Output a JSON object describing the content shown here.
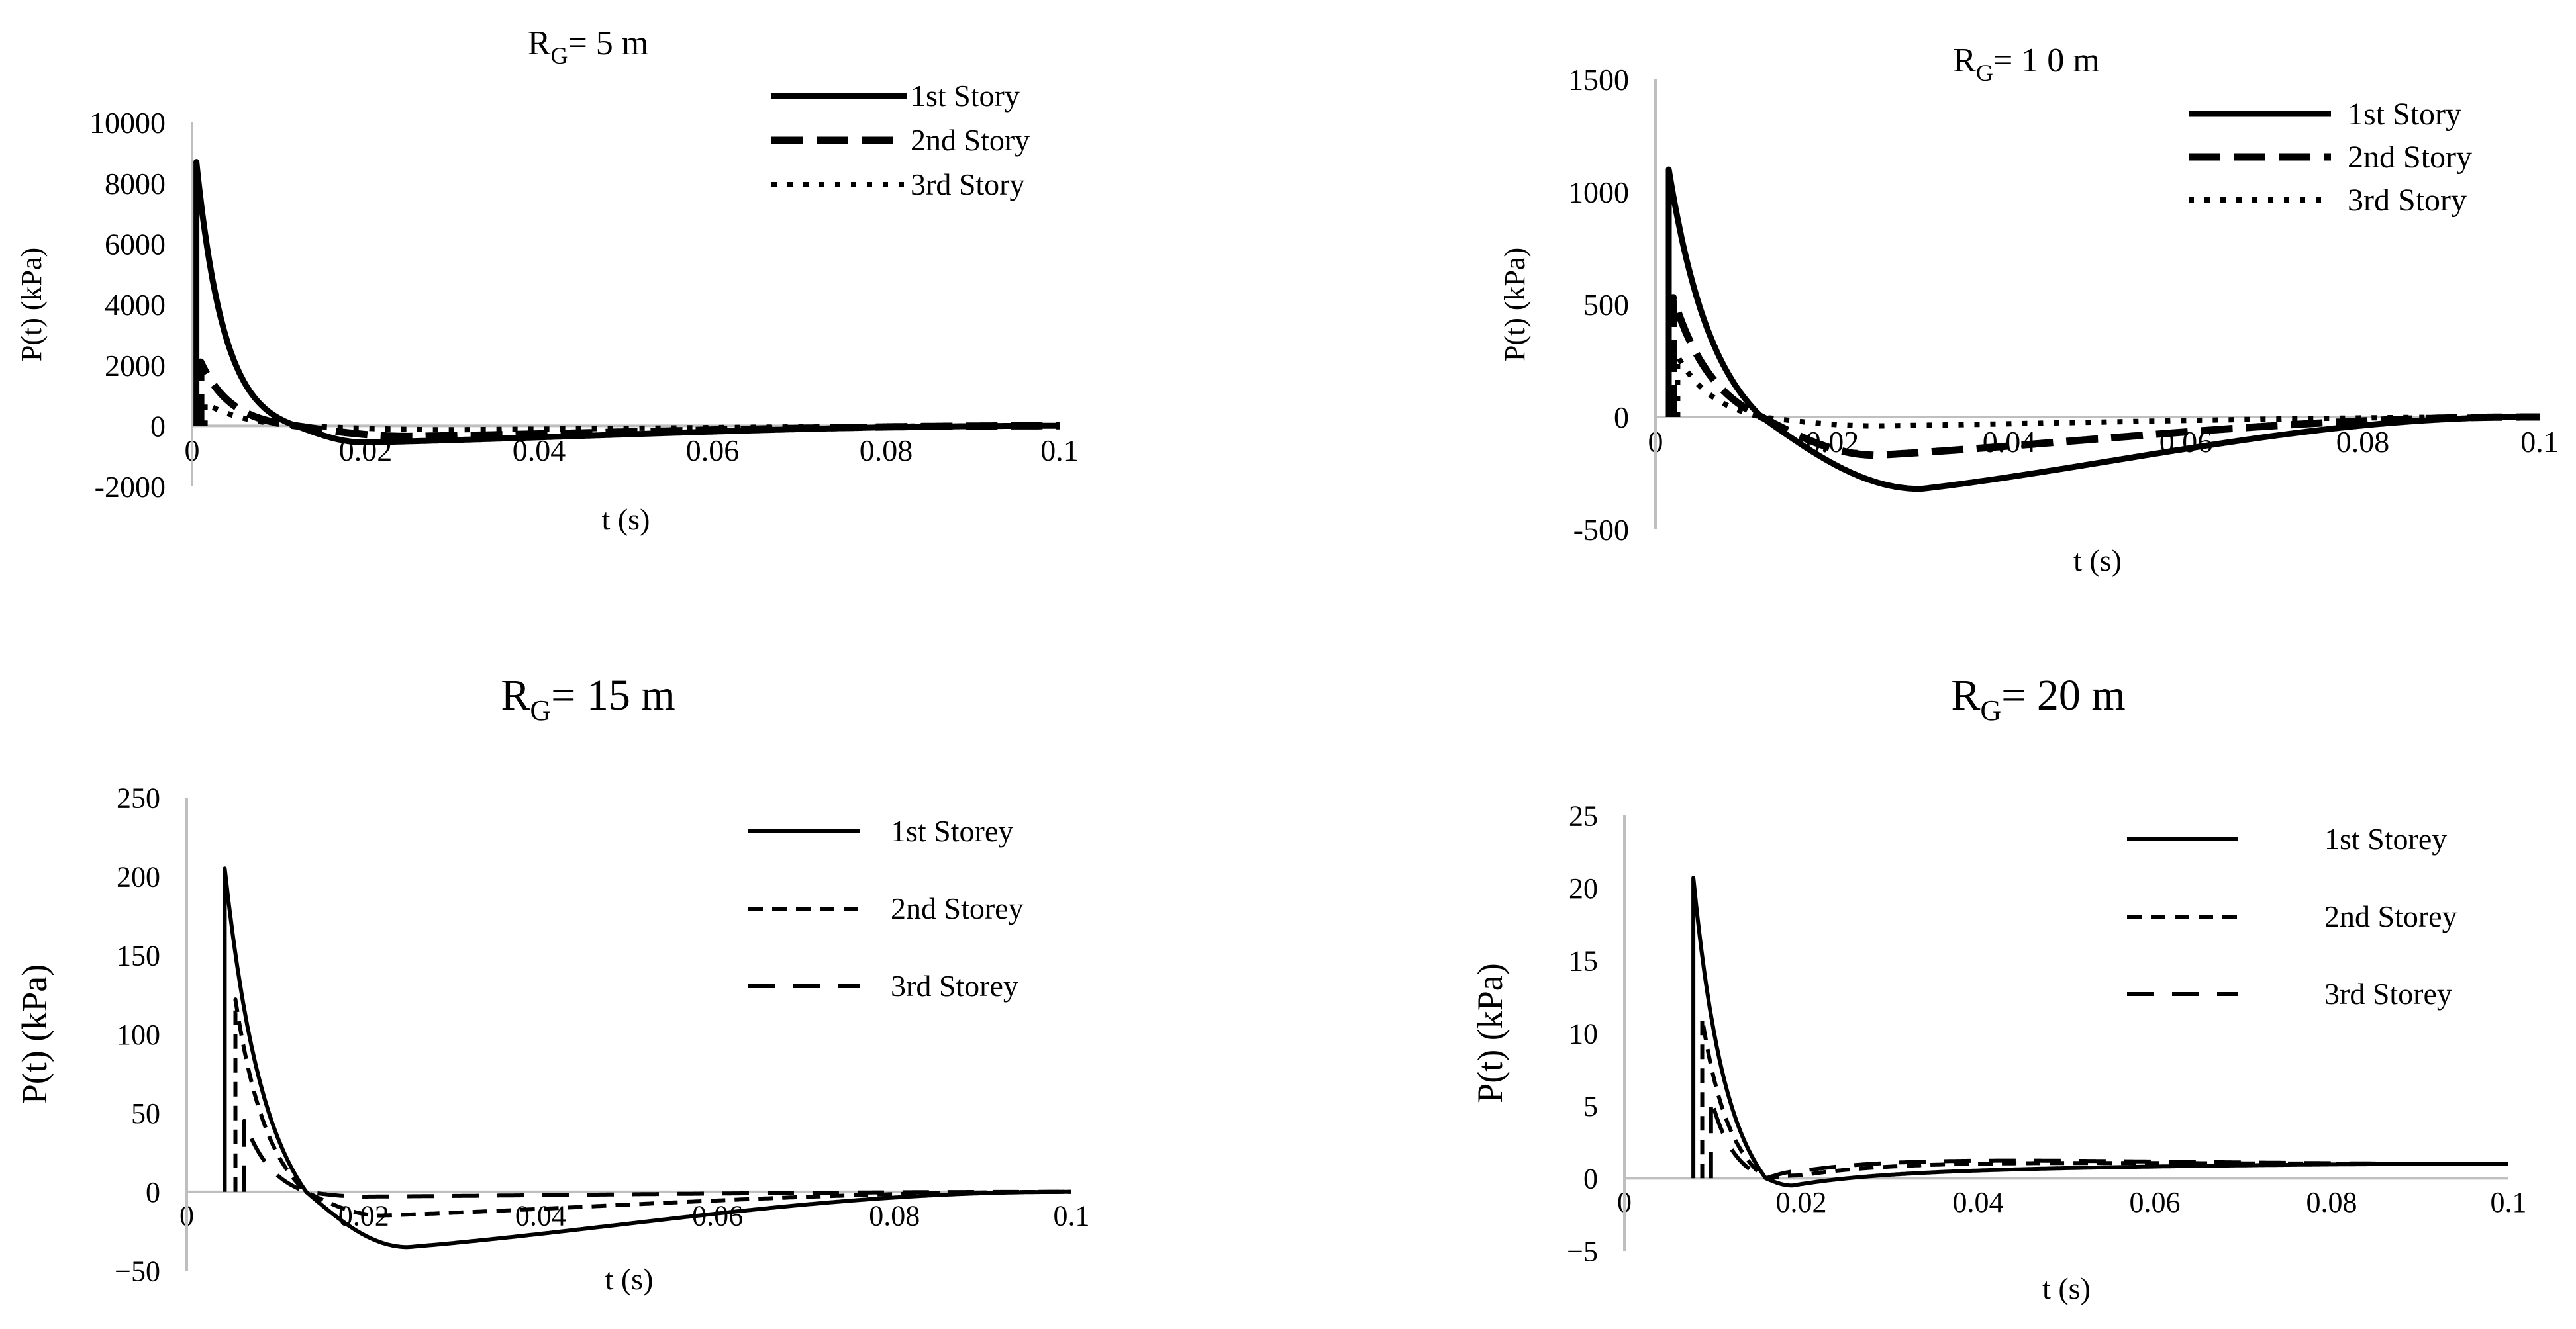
{
  "figure": {
    "background": "#ffffff",
    "line_color": "#000000",
    "zero_line_color": "#bfbfbf"
  },
  "chart_data": [
    {
      "type": "line",
      "title_main": "R",
      "title_sub": "G",
      "title_rest": "=  5  m",
      "xlabel": "t (s)",
      "ylabel": "P(t) (kPa)",
      "xlim": [
        0,
        0.1
      ],
      "ylim": [
        -2000,
        10000
      ],
      "xticks": [
        0,
        0.02,
        0.04,
        0.06,
        0.08,
        0.1
      ],
      "xtick_labels": [
        "0",
        "0.02",
        "0.04",
        "0.06",
        "0.08",
        "0.1"
      ],
      "yticks": [
        -2000,
        0,
        2000,
        4000,
        6000,
        8000,
        10000
      ],
      "ytick_labels": [
        "-2000",
        "0",
        "2000",
        "4000",
        "6000",
        "8000",
        "10000"
      ],
      "legend": "top-right",
      "series": [
        {
          "name": "1st Story",
          "style": "solid",
          "arrival": 0.0005,
          "peak": 8700,
          "decay": 0.0032,
          "zero": 0.012,
          "neg_min": -550,
          "neg_t": 0.02,
          "end": 0.1
        },
        {
          "name": "2nd Story",
          "style": "dash",
          "arrival": 0.001,
          "peak": 2100,
          "decay": 0.0035,
          "zero": 0.012,
          "neg_min": -350,
          "neg_t": 0.025,
          "end": 0.1
        },
        {
          "name": "3rd Story",
          "style": "dot",
          "arrival": 0.0015,
          "peak": 750,
          "decay": 0.0045,
          "zero": 0.012,
          "neg_min": -130,
          "neg_t": 0.03,
          "end": 0.1
        }
      ]
    },
    {
      "type": "line",
      "title_main": "R",
      "title_sub": "G",
      "title_rest": "=  1 0  m",
      "xlabel": "t (s)",
      "ylabel": "P(t) (kPa)",
      "xlim": [
        0,
        0.1
      ],
      "ylim": [
        -500,
        1500
      ],
      "xticks": [
        0,
        0.02,
        0.04,
        0.06,
        0.08,
        0.1
      ],
      "xtick_labels": [
        "0",
        "0.02",
        "0.04",
        "0.06",
        "0.08",
        "0.1"
      ],
      "yticks": [
        -500,
        0,
        500,
        1000,
        1500
      ],
      "ytick_labels": [
        "-500",
        "0",
        "500",
        "1000",
        "1500"
      ],
      "legend": "top-right",
      "series": [
        {
          "name": "1st Story",
          "style": "solid",
          "arrival": 0.0015,
          "peak": 1100,
          "decay": 0.0048,
          "zero": 0.012,
          "neg_min": -320,
          "neg_t": 0.03,
          "end": 0.1
        },
        {
          "name": "2nd Story",
          "style": "dash",
          "arrival": 0.002,
          "peak": 530,
          "decay": 0.0045,
          "zero": 0.012,
          "neg_min": -170,
          "neg_t": 0.025,
          "end": 0.1
        },
        {
          "name": "3rd Story",
          "style": "dot",
          "arrival": 0.0025,
          "peak": 270,
          "decay": 0.004,
          "zero": 0.012,
          "neg_min": -40,
          "neg_t": 0.025,
          "end": 0.1
        }
      ]
    },
    {
      "type": "line",
      "title_main": "R",
      "title_sub": "G",
      "title_rest": "= 15 m",
      "xlabel": "t (s)",
      "ylabel": "P(t) (kPa)",
      "xlim": [
        0,
        0.1
      ],
      "ylim": [
        -50,
        250
      ],
      "xticks": [
        0,
        0.02,
        0.04,
        0.06,
        0.08,
        0.1
      ],
      "xtick_labels": [
        "0",
        "0.02",
        "0.04",
        "0.06",
        "0.08",
        "0.1"
      ],
      "yticks": [
        -50,
        0,
        50,
        100,
        150,
        200,
        250
      ],
      "ytick_labels": [
        "−50",
        "0",
        "50",
        "100",
        "150",
        "200",
        "250"
      ],
      "legend": "right",
      "series": [
        {
          "name": "1st Storey",
          "style": "solid",
          "arrival": 0.0043,
          "peak": 205,
          "decay": 0.0042,
          "zero": 0.0135,
          "neg_min": -35,
          "neg_t": 0.025,
          "end": 0.1
        },
        {
          "name": "2nd Storey",
          "style": "short-dash",
          "arrival": 0.0055,
          "peak": 122,
          "decay": 0.0035,
          "zero": 0.0135,
          "neg_min": -15,
          "neg_t": 0.022,
          "end": 0.1
        },
        {
          "name": "3rd Storey",
          "style": "long-dash",
          "arrival": 0.0065,
          "peak": 45,
          "decay": 0.003,
          "zero": 0.0135,
          "neg_min": -3,
          "neg_t": 0.02,
          "end": 0.1
        }
      ]
    },
    {
      "type": "line",
      "title_main": "R",
      "title_sub": "G",
      "title_rest": "= 20 m",
      "xlabel": "t (s)",
      "ylabel": "P(t) (kPa)",
      "xlim": [
        0,
        0.1
      ],
      "ylim": [
        -5,
        25
      ],
      "xticks": [
        0,
        0.02,
        0.04,
        0.06,
        0.08,
        0.1
      ],
      "xtick_labels": [
        "0",
        "0.02",
        "0.04",
        "0.06",
        "0.08",
        "0.1"
      ],
      "yticks": [
        -5,
        0,
        5,
        10,
        15,
        20,
        25
      ],
      "ytick_labels": [
        "−5",
        "0",
        "5",
        "10",
        "15",
        "20",
        "25"
      ],
      "legend": "right",
      "series": [
        {
          "name": "1st Storey",
          "style": "solid",
          "arrival": 0.0078,
          "peak": 20.7,
          "decay": 0.0035,
          "zero": 0.016,
          "neg_min": -0.5,
          "neg_t": 0.019,
          "end": 0.1,
          "tail": 1.0
        },
        {
          "name": "2nd Storey",
          "style": "short-dash",
          "arrival": 0.0088,
          "peak": 11,
          "decay": 0.003,
          "zero": 0.016,
          "neg_min": 0.2,
          "neg_t": 0.02,
          "end": 0.1,
          "tail": 1.0
        },
        {
          "name": "3rd Storey",
          "style": "long-dash",
          "arrival": 0.0098,
          "peak": 5.5,
          "decay": 0.0025,
          "zero": 0.016,
          "neg_min": 0.5,
          "neg_t": 0.02,
          "end": 0.1,
          "tail": 1.0
        }
      ]
    }
  ]
}
